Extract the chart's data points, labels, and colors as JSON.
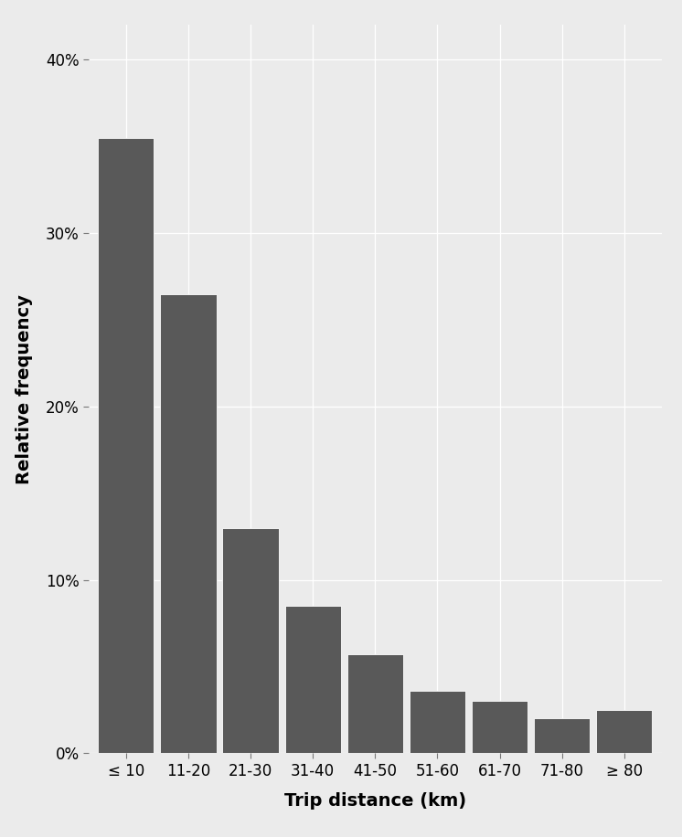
{
  "categories": [
    "≤ 10",
    "11-20",
    "21-30",
    "31-40",
    "41-50",
    "51-60",
    "61-70",
    "71-80",
    "≥ 80"
  ],
  "values": [
    0.355,
    0.265,
    0.13,
    0.085,
    0.057,
    0.036,
    0.03,
    0.02,
    0.025
  ],
  "bar_color": "#595959",
  "bar_edgecolor": "white",
  "xlabel": "Trip distance (km)",
  "ylabel": "Relative frequency",
  "ylim": [
    0,
    0.42
  ],
  "yticks": [
    0.0,
    0.1,
    0.2,
    0.3,
    0.4
  ],
  "background_color": "#ebebeb",
  "grid_color": "white",
  "label_fontsize": 14,
  "tick_fontsize": 12,
  "bar_width": 0.9
}
